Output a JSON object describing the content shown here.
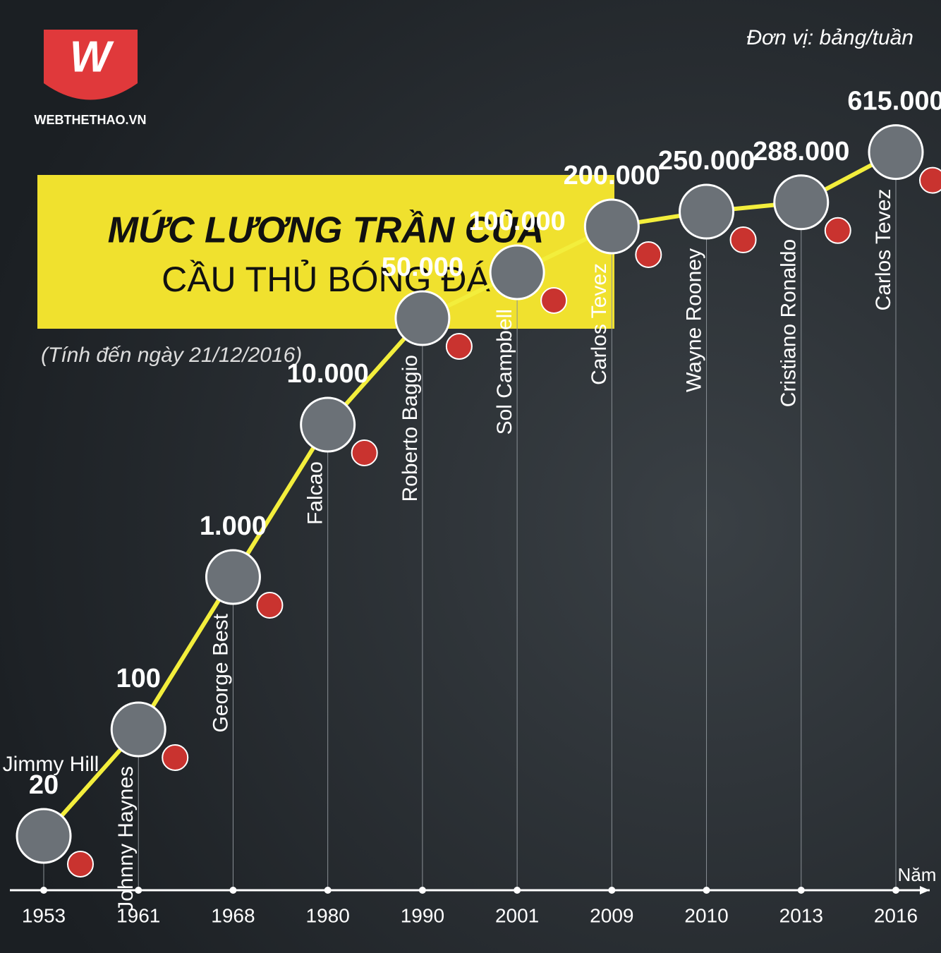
{
  "logo": {
    "mark": "W",
    "name": "WEBTHETHAO.VN"
  },
  "unit": "Đơn vị: bảng/tuần",
  "title": "MỨC LƯƠNG TRẦN CỦA",
  "title2": "CẦU THỦ BÓNG ĐÁ",
  "note": "(Tính đến ngày 21/12/2016)",
  "chart_data": {
    "type": "line",
    "x_label": "Năm",
    "categories": [
      "1953",
      "1961",
      "1968",
      "1980",
      "1990",
      "2001",
      "2009",
      "2010",
      "2013",
      "2016"
    ],
    "players": [
      "Jimmy Hill",
      "Johnny Haynes",
      "George Best",
      "Falcao",
      "Roberto Baggio",
      "Sol Campbell",
      "Carlos Tevez",
      "Wayne Rooney",
      "Cristiano Ronaldo",
      "Carlos Tevez"
    ],
    "values": [
      20,
      100,
      1000,
      10000,
      50000,
      100000,
      200000,
      250000,
      288000,
      615000
    ],
    "value_labels": [
      "20",
      "100",
      "1.000",
      "10.000",
      "50.000",
      "100.000",
      "200.000",
      "250.000",
      "288.000",
      "615.000"
    ],
    "color": "#f3ee3c",
    "log": true,
    "ylim": [
      10,
      1000000
    ]
  }
}
